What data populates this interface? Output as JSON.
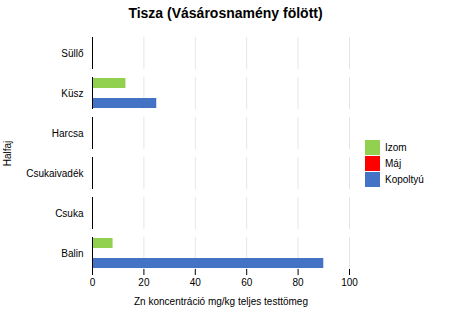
{
  "chart_data": {
    "type": "bar",
    "orientation": "horizontal",
    "title": "Tisza (Vásárosnamény fölött)",
    "xlabel": "Zn koncentráció mg/kg teljes testtömeg",
    "ylabel": "Halfaj",
    "categories": [
      "Süllő",
      "Küsz",
      "Harcsa",
      "Csukaivadék",
      "Csuka",
      "Balin"
    ],
    "series": [
      {
        "name": "Izom",
        "color": "#92d050",
        "values": [
          0,
          13,
          0,
          0,
          0,
          8
        ]
      },
      {
        "name": "Máj",
        "color": "#ff0000",
        "values": [
          0,
          0,
          0,
          0,
          0,
          0
        ]
      },
      {
        "name": "Kopoltyú",
        "color": "#4472c4",
        "values": [
          0,
          25,
          0,
          0,
          0,
          90
        ]
      }
    ],
    "xlim": [
      0,
      100
    ],
    "xticks": [
      0,
      20,
      40,
      60,
      80,
      100
    ],
    "grid": true,
    "legend": "right"
  }
}
